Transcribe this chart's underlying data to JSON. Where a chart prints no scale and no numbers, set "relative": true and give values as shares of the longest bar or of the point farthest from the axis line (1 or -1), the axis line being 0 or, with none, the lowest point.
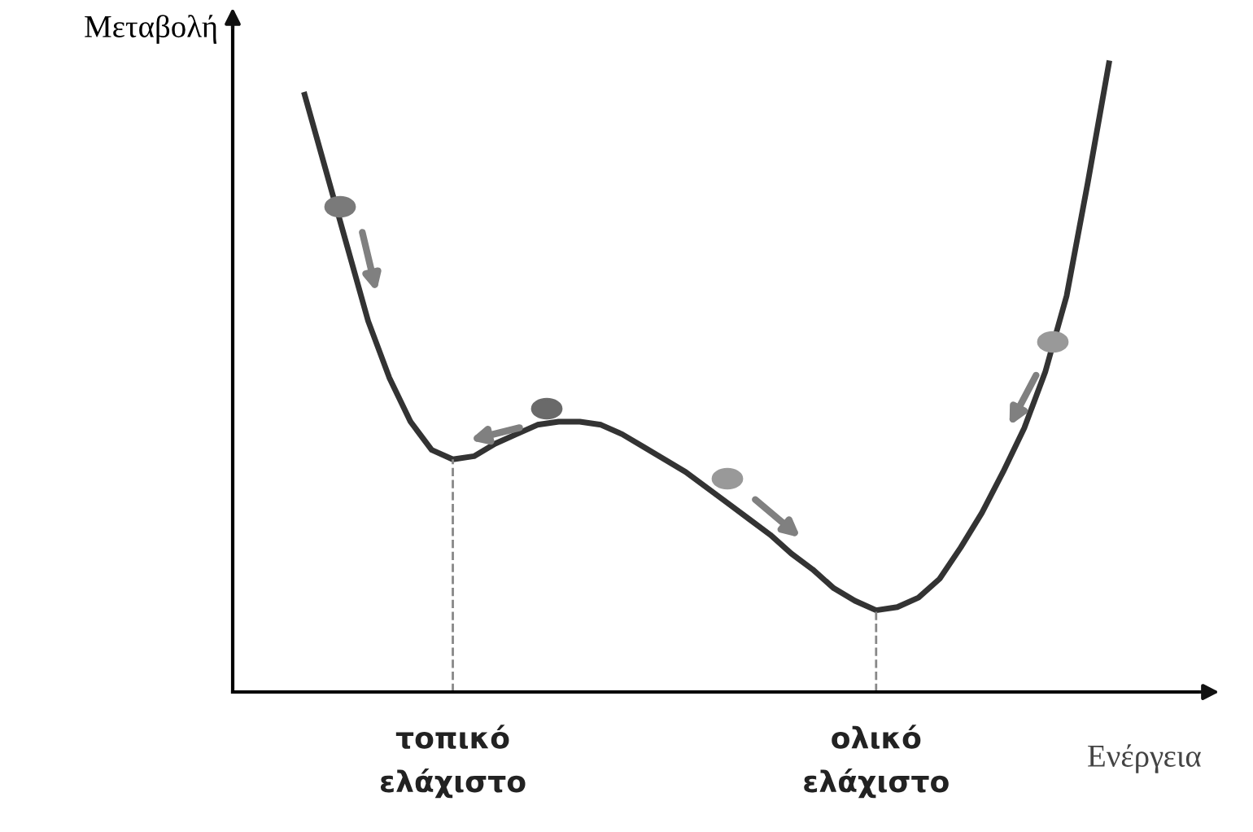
{
  "chart_data": {
    "type": "line",
    "relative": true,
    "ylabel": "Μεταβολή",
    "xlabel": "Ενέργεια",
    "categories": [
      null,
      null,
      null,
      null,
      null,
      null,
      null,
      null,
      null,
      null,
      null,
      null,
      null,
      null,
      null,
      null,
      null,
      null,
      null,
      null,
      null,
      null,
      null,
      null,
      null,
      null,
      null,
      null,
      null,
      null,
      null,
      null,
      null,
      null,
      null,
      null,
      null,
      null,
      null
    ],
    "series": [
      {
        "color": "#333333",
        "values": [
          0.95,
          0.83,
          0.71,
          0.59,
          0.5,
          0.43,
          0.385,
          0.37,
          0.375,
          0.395,
          0.41,
          0.425,
          0.43,
          0.43,
          0.425,
          0.41,
          0.39,
          0.37,
          0.35,
          0.325,
          0.3,
          0.275,
          0.25,
          0.22,
          0.195,
          0.165,
          0.145,
          0.13,
          0.135,
          0.15,
          0.18,
          0.23,
          0.285,
          0.35,
          0.42,
          0.51,
          0.63,
          0.81,
          1
        ]
      }
    ],
    "annotations": [
      "τοπικό ελάχιστο",
      "ολικό ελάχιστο"
    ],
    "legend": false,
    "marker": "none",
    "line_style": "solid"
  }
}
